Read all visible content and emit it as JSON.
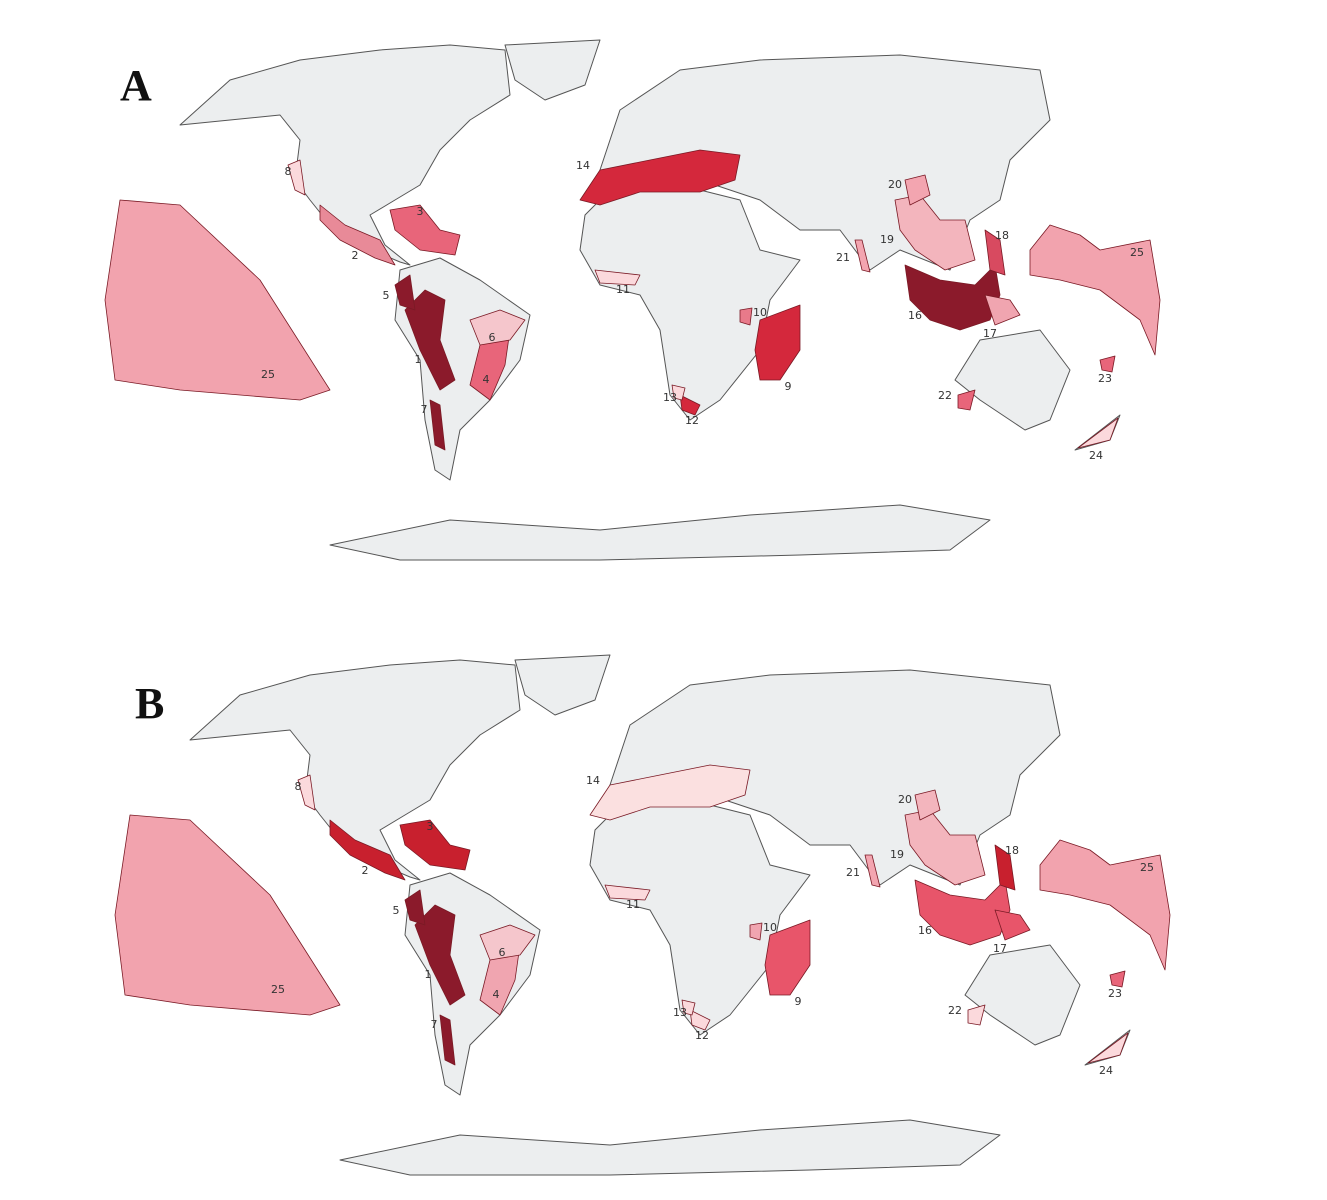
{
  "panels": [
    {
      "label": "A",
      "hotspots": [
        {
          "id": "1",
          "color": "#8b1a2b"
        },
        {
          "id": "2",
          "color": "#e88a98"
        },
        {
          "id": "3",
          "color": "#e8657a"
        },
        {
          "id": "4",
          "color": "#e8657a"
        },
        {
          "id": "5",
          "color": "#8b1a2b"
        },
        {
          "id": "6",
          "color": "#f5c6cc"
        },
        {
          "id": "7",
          "color": "#8b1a2b"
        },
        {
          "id": "8",
          "color": "#fbd9dc"
        },
        {
          "id": "9",
          "color": "#d4283c"
        },
        {
          "id": "10",
          "color": "#e87a8a"
        },
        {
          "id": "11",
          "color": "#fbd9dc"
        },
        {
          "id": "12",
          "color": "#d4283c"
        },
        {
          "id": "13",
          "color": "#fbd9dc"
        },
        {
          "id": "14",
          "color": "#d4283c"
        },
        {
          "id": "16",
          "color": "#8b1a2b"
        },
        {
          "id": "17",
          "color": "#f0a5b0"
        },
        {
          "id": "18",
          "color": "#d84a60"
        },
        {
          "id": "19",
          "color": "#f3b5bd"
        },
        {
          "id": "20",
          "color": "#f3a5b0"
        },
        {
          "id": "21",
          "color": "#f3a5b0"
        },
        {
          "id": "22",
          "color": "#e8657a"
        },
        {
          "id": "23",
          "color": "#e8657a"
        },
        {
          "id": "24",
          "color": "#fbd9dc"
        },
        {
          "id": "25",
          "color": "#f2a3ae"
        }
      ]
    },
    {
      "label": "B",
      "hotspots": [
        {
          "id": "1",
          "color": "#8b1a2b"
        },
        {
          "id": "2",
          "color": "#c8202e"
        },
        {
          "id": "3",
          "color": "#c8202e"
        },
        {
          "id": "4",
          "color": "#f0a5b0"
        },
        {
          "id": "5",
          "color": "#8b1a2b"
        },
        {
          "id": "6",
          "color": "#f5c6cc"
        },
        {
          "id": "7",
          "color": "#8b1a2b"
        },
        {
          "id": "8",
          "color": "#fbd9dc"
        },
        {
          "id": "9",
          "color": "#e8556a"
        },
        {
          "id": "10",
          "color": "#f0a5b0"
        },
        {
          "id": "11",
          "color": "#fbd9dc"
        },
        {
          "id": "12",
          "color": "#fbd9dc"
        },
        {
          "id": "13",
          "color": "#fbd9dc"
        },
        {
          "id": "14",
          "color": "#fbe0e0"
        },
        {
          "id": "16",
          "color": "#e8556a"
        },
        {
          "id": "17",
          "color": "#e8556a"
        },
        {
          "id": "18",
          "color": "#c8202e"
        },
        {
          "id": "19",
          "color": "#f3b5bd"
        },
        {
          "id": "20",
          "color": "#f3b5bd"
        },
        {
          "id": "21",
          "color": "#f3a5b0"
        },
        {
          "id": "22",
          "color": "#fbd9dc"
        },
        {
          "id": "23",
          "color": "#e8657a"
        },
        {
          "id": "24",
          "color": "#fbd9dc"
        },
        {
          "id": "25",
          "color": "#f2a3ae"
        }
      ]
    }
  ]
}
